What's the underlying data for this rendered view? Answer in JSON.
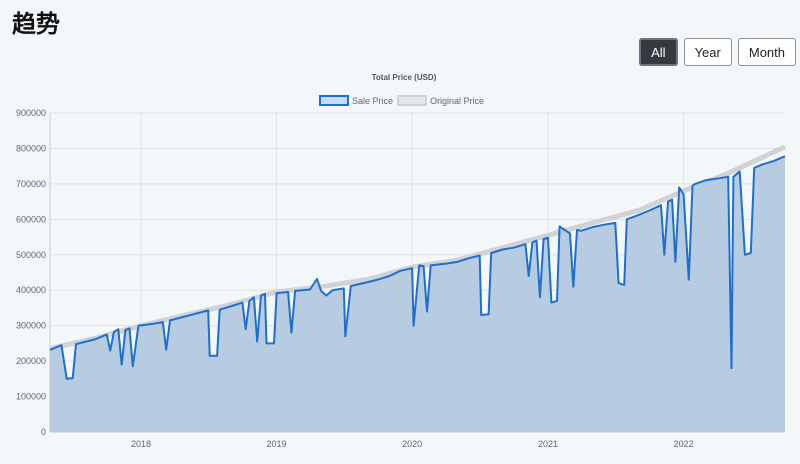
{
  "page": {
    "title": "趋势"
  },
  "range_buttons": [
    {
      "label": "All",
      "active": true
    },
    {
      "label": "Year",
      "active": false
    },
    {
      "label": "Month",
      "active": false
    }
  ],
  "chart_data": {
    "type": "area",
    "title": "Total Price (USD)",
    "xlabel": "",
    "ylabel": "",
    "x_ticks": [
      "2018",
      "2019",
      "2020",
      "2021",
      "2022"
    ],
    "x_range": [
      "2017-05",
      "2022-10"
    ],
    "ylim": [
      0,
      900000
    ],
    "y_ticks": [
      0,
      100000,
      200000,
      300000,
      400000,
      500000,
      600000,
      700000,
      800000,
      900000
    ],
    "grid": true,
    "legend": "top-center",
    "colors": {
      "sale_line": "#1f6fcf",
      "sale_fill": "#b3c9df",
      "original_line": "#cfd3d6"
    },
    "series": [
      {
        "name": "Sale Price",
        "points": [
          [
            "2017-05",
            232000
          ],
          [
            "2017-06",
            245000
          ],
          [
            "2017-06-15",
            150000
          ],
          [
            "2017-07",
            152000
          ],
          [
            "2017-07-10",
            248000
          ],
          [
            "2017-09",
            262000
          ],
          [
            "2017-10",
            275000
          ],
          [
            "2017-10-10",
            230000
          ],
          [
            "2017-10-20",
            282000
          ],
          [
            "2017-11",
            290000
          ],
          [
            "2017-11-10",
            190000
          ],
          [
            "2017-11-20",
            288000
          ],
          [
            "2017-12",
            292000
          ],
          [
            "2017-12-10",
            185000
          ],
          [
            "2017-12-25",
            300000
          ],
          [
            "2018-02",
            305000
          ],
          [
            "2018-03",
            310000
          ],
          [
            "2018-03-10",
            232000
          ],
          [
            "2018-03-20",
            315000
          ],
          [
            "2018-06",
            335000
          ],
          [
            "2018-07",
            343000
          ],
          [
            "2018-07-05",
            215000
          ],
          [
            "2018-07-25",
            215000
          ],
          [
            "2018-08",
            345000
          ],
          [
            "2018-09",
            355000
          ],
          [
            "2018-10",
            365000
          ],
          [
            "2018-10-10",
            290000
          ],
          [
            "2018-10-20",
            370000
          ],
          [
            "2018-11",
            380000
          ],
          [
            "2018-11-10",
            255000
          ],
          [
            "2018-11-20",
            385000
          ],
          [
            "2018-12",
            390000
          ],
          [
            "2018-12-05",
            250000
          ],
          [
            "2018-12-25",
            250000
          ],
          [
            "2019-01",
            392000
          ],
          [
            "2019-02",
            395000
          ],
          [
            "2019-02-10",
            280000
          ],
          [
            "2019-02-20",
            398000
          ],
          [
            "2019-04",
            402000
          ],
          [
            "2019-04-20",
            432000
          ],
          [
            "2019-05",
            398000
          ],
          [
            "2019-05-15",
            385000
          ],
          [
            "2019-06",
            400000
          ],
          [
            "2019-07",
            405000
          ],
          [
            "2019-07-05",
            270000
          ],
          [
            "2019-07-20",
            412000
          ],
          [
            "2019-09",
            422000
          ],
          [
            "2019-10",
            430000
          ],
          [
            "2019-11",
            440000
          ],
          [
            "2019-12",
            455000
          ],
          [
            "2020-01",
            462000
          ],
          [
            "2020-01-05",
            300000
          ],
          [
            "2020-01-20",
            470000
          ],
          [
            "2020-02",
            468000
          ],
          [
            "2020-02-10",
            340000
          ],
          [
            "2020-02-20",
            470000
          ],
          [
            "2020-04",
            475000
          ],
          [
            "2020-05",
            480000
          ],
          [
            "2020-06",
            490000
          ],
          [
            "2020-07",
            498000
          ],
          [
            "2020-07-05",
            330000
          ],
          [
            "2020-07-25",
            332000
          ],
          [
            "2020-08",
            505000
          ],
          [
            "2020-09",
            515000
          ],
          [
            "2020-10",
            520000
          ],
          [
            "2020-11",
            530000
          ],
          [
            "2020-11-10",
            440000
          ],
          [
            "2020-11-20",
            535000
          ],
          [
            "2020-12",
            540000
          ],
          [
            "2020-12-10",
            380000
          ],
          [
            "2020-12-20",
            545000
          ],
          [
            "2021-01",
            548000
          ],
          [
            "2021-01-10",
            365000
          ],
          [
            "2021-01-25",
            370000
          ],
          [
            "2021-02",
            580000
          ],
          [
            "2021-03",
            560000
          ],
          [
            "2021-03-10",
            410000
          ],
          [
            "2021-03-20",
            570000
          ],
          [
            "2021-04",
            568000
          ],
          [
            "2021-05",
            578000
          ],
          [
            "2021-06",
            585000
          ],
          [
            "2021-07",
            590000
          ],
          [
            "2021-07-10",
            420000
          ],
          [
            "2021-07-25",
            415000
          ],
          [
            "2021-08",
            600000
          ],
          [
            "2021-09",
            612000
          ],
          [
            "2021-10",
            625000
          ],
          [
            "2021-11",
            640000
          ],
          [
            "2021-11-10",
            500000
          ],
          [
            "2021-11-20",
            650000
          ],
          [
            "2021-12",
            655000
          ],
          [
            "2021-12-10",
            480000
          ],
          [
            "2021-12-20",
            690000
          ],
          [
            "2022-01",
            670000
          ],
          [
            "2022-01-15",
            430000
          ],
          [
            "2022-01-25",
            695000
          ],
          [
            "2022-02",
            700000
          ],
          [
            "2022-03",
            710000
          ],
          [
            "2022-04",
            715000
          ],
          [
            "2022-05",
            720000
          ],
          [
            "2022-05-10",
            180000
          ],
          [
            "2022-05-15",
            720000
          ],
          [
            "2022-06",
            735000
          ],
          [
            "2022-06-15",
            500000
          ],
          [
            "2022-07",
            505000
          ],
          [
            "2022-07-10",
            745000
          ],
          [
            "2022-08",
            755000
          ],
          [
            "2022-09",
            765000
          ],
          [
            "2022-10",
            778000
          ]
        ]
      },
      {
        "name": "Original Price",
        "points": [
          [
            "2017-05",
            235000
          ],
          [
            "2017-09",
            265000
          ],
          [
            "2018-01",
            300000
          ],
          [
            "2018-05",
            330000
          ],
          [
            "2018-09",
            360000
          ],
          [
            "2019-01",
            395000
          ],
          [
            "2019-05",
            410000
          ],
          [
            "2019-09",
            430000
          ],
          [
            "2020-01",
            465000
          ],
          [
            "2020-05",
            485000
          ],
          [
            "2020-09",
            520000
          ],
          [
            "2021-01",
            555000
          ],
          [
            "2021-05",
            590000
          ],
          [
            "2021-09",
            625000
          ],
          [
            "2022-01",
            680000
          ],
          [
            "2022-05",
            730000
          ],
          [
            "2022-09",
            790000
          ],
          [
            "2022-10",
            805000
          ]
        ]
      }
    ]
  }
}
